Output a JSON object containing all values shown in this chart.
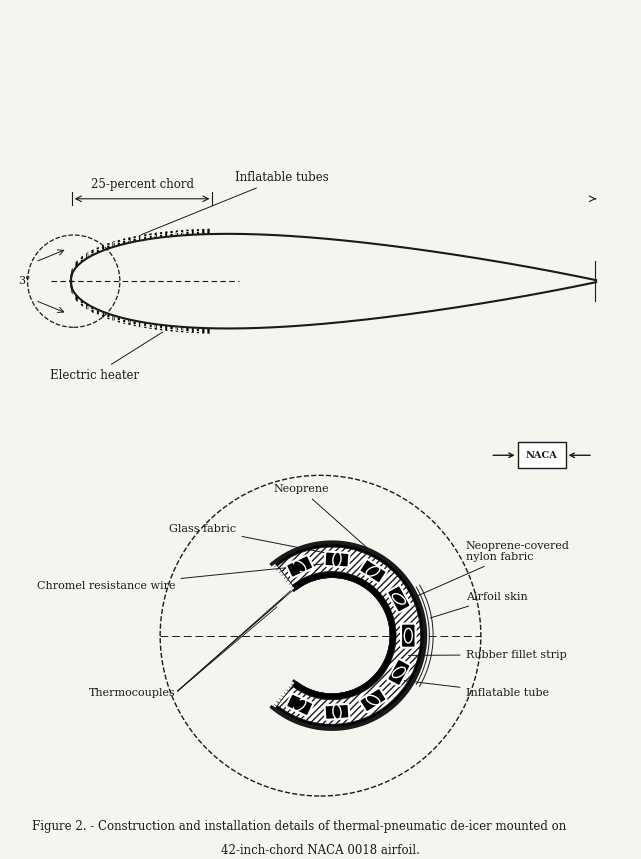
{
  "title": "",
  "caption_line1": "Figure 2. - Construction and installation details of thermal-pneumatic de-icer mounted on",
  "caption_line2": "42-inch-chord NACA 0018 airfoil.",
  "bg_color": "#f5f4ef",
  "line_color": "#1a1a1a",
  "top_labels": {
    "chord": "25-percent chord",
    "inflatable": "Inflatable tubes",
    "heater": "Electric heater",
    "three_inch": "3\""
  },
  "bottom_labels": {
    "neoprene": "Neoprene",
    "glass_fabric": "Glass fabric",
    "chromel": "Chromel resistance wire",
    "thermocouples": "Thermocouples",
    "neoprene_covered": "Neoprene-covered\nnylon fabric",
    "airfoil_skin": "Airfoil skin",
    "rubber_fillet": "Rubber fillet strip",
    "inflatable_tube": "Inflatable tube"
  }
}
